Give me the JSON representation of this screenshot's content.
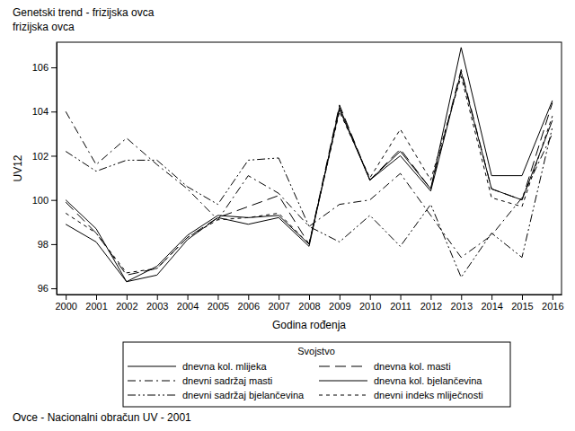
{
  "chart_data": {
    "type": "line",
    "title": "Genetski trend - frizijska ovca",
    "subtitle": "frizijska ovca",
    "x_label": "Godina rođenja",
    "y_label": "UV12",
    "legend_title": "Svojstvo",
    "annotations": [
      "Ovce - Nacionalni obračun UV - 2001"
    ],
    "legend": "bottom",
    "grid": false,
    "x": [
      2000,
      2001,
      2002,
      2003,
      2004,
      2005,
      2006,
      2007,
      2008,
      2009,
      2010,
      2011,
      2012,
      2013,
      2014,
      2015,
      2016
    ],
    "xlim": [
      1999.7,
      2016.3
    ],
    "xticks": [
      2000,
      2001,
      2002,
      2003,
      2004,
      2005,
      2006,
      2007,
      2008,
      2009,
      2010,
      2011,
      2012,
      2013,
      2014,
      2015,
      2016
    ],
    "ylim": [
      95.72,
      107.14
    ],
    "yticks": [
      96,
      98,
      100,
      102,
      104,
      106
    ],
    "series": [
      {
        "name": "dnevna kol. mlijeka",
        "color": "#000000",
        "line_style": "solid",
        "values": [
          98.9,
          98.1,
          96.3,
          96.6,
          98.2,
          99.2,
          98.9,
          99.2,
          97.9,
          104.2,
          100.9,
          102.2,
          100.5,
          106.9,
          101.1,
          101.1,
          104.5
        ]
      },
      {
        "name": "dnevna kol. masti",
        "color": "#000000",
        "line_style": "long_dash",
        "values": [
          99.9,
          98.5,
          96.6,
          96.9,
          98.3,
          99.2,
          99.7,
          100.2,
          98.0,
          104.3,
          100.9,
          102.3,
          100.5,
          105.9,
          100.5,
          100.0,
          104.4
        ]
      },
      {
        "name": "dnevni sadržaj masti",
        "color": "#000000",
        "line_style": "dash_dot",
        "values": [
          104.0,
          101.6,
          102.8,
          101.6,
          100.5,
          99.1,
          101.1,
          100.3,
          98.8,
          99.8,
          100.0,
          101.2,
          99.3,
          97.4,
          98.4,
          100.1,
          103.0
        ]
      },
      {
        "name": "dnevna kol. bjelančevina",
        "color": "#000000",
        "line_style": "solid",
        "values": [
          100.0,
          98.7,
          96.3,
          97.0,
          98.4,
          99.3,
          99.2,
          99.3,
          98.0,
          104.1,
          100.9,
          102.0,
          100.4,
          105.8,
          100.5,
          100.0,
          103.6
        ]
      },
      {
        "name": "dnevni sadržaj bjelančevina",
        "color": "#000000",
        "line_style": "dash_dot_dot",
        "values": [
          102.2,
          101.3,
          101.8,
          101.8,
          100.6,
          99.8,
          101.8,
          101.9,
          98.8,
          98.1,
          99.3,
          97.9,
          99.8,
          96.5,
          98.5,
          97.4,
          103.3
        ]
      },
      {
        "name": "dnevni indeks mliječnosti",
        "color": "#000000",
        "line_style": "short_dash",
        "values": [
          99.4,
          98.5,
          96.7,
          96.9,
          98.3,
          99.1,
          99.2,
          99.4,
          98.0,
          104.0,
          101.0,
          103.2,
          100.9,
          105.6,
          100.1,
          99.7,
          103.8
        ]
      }
    ]
  }
}
